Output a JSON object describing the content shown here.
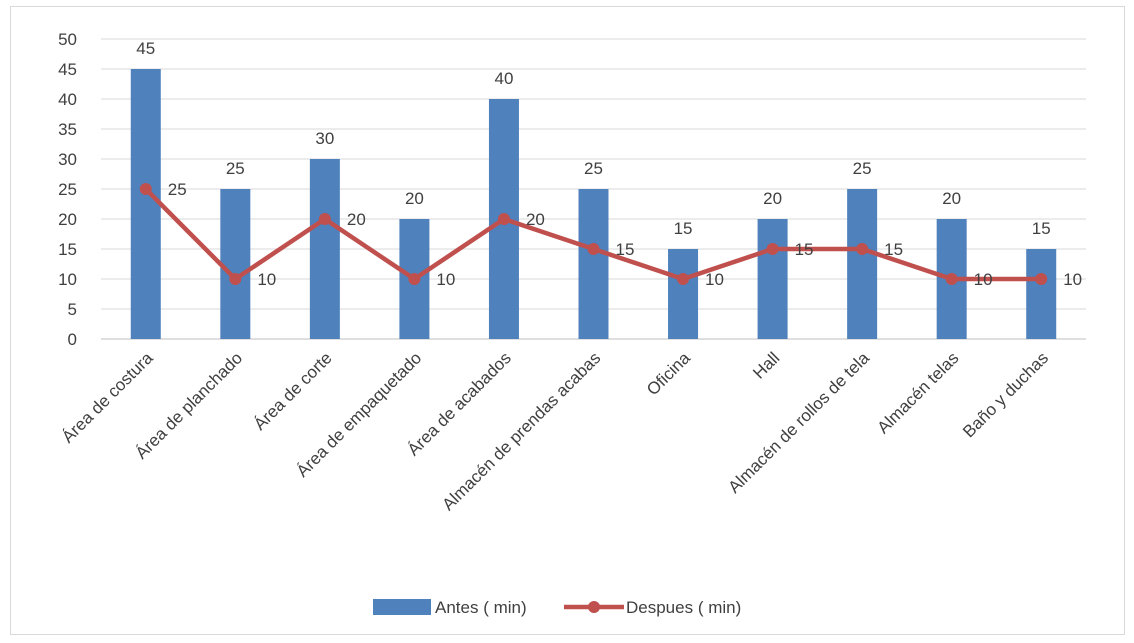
{
  "chart_data": {
    "type": "bar",
    "title": "",
    "xlabel": "",
    "ylabel": "",
    "ylim": [
      0,
      50
    ],
    "yticks": [
      0,
      5,
      10,
      15,
      20,
      25,
      30,
      35,
      40,
      45,
      50
    ],
    "grid": true,
    "legend": "bottom",
    "categories": [
      "Área de costura",
      "Área de planchado",
      "Área de corte",
      "Área de empaquetado",
      "Área de acabados",
      "Almacén de prendas acabas",
      "Oficina",
      "Hall",
      "Almacén de rollos de tela",
      "Almacén telas",
      "Baño y duchas"
    ],
    "series": [
      {
        "name": "Antes  ( min)",
        "type": "bar",
        "color": "#4f81bd",
        "values": [
          45,
          25,
          30,
          20,
          40,
          25,
          15,
          20,
          25,
          20,
          15
        ]
      },
      {
        "name": "Despues ( min)",
        "type": "line",
        "color": "#c0504d",
        "values": [
          25,
          10,
          20,
          10,
          20,
          15,
          10,
          15,
          15,
          10,
          10
        ]
      }
    ]
  }
}
